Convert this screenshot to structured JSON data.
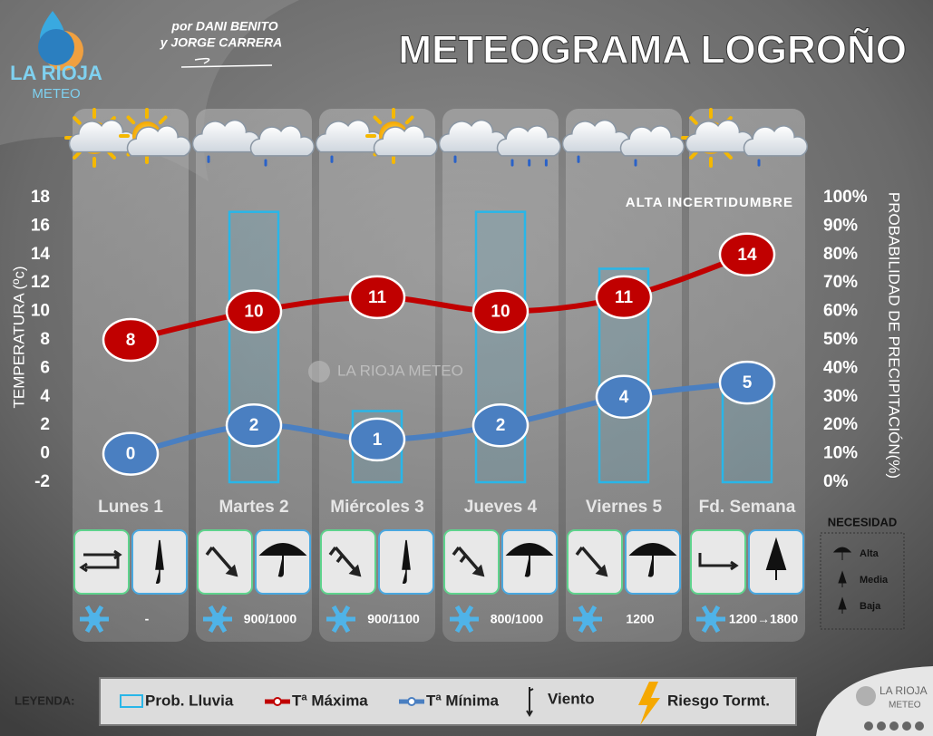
{
  "chart_data": {
    "type": "meteogram",
    "title": "METEOGRAMA LOGROÑO",
    "authors": [
      "por DANI BENITO",
      "y JORGE CARRERA"
    ],
    "logo": {
      "name": "LA RIOJA",
      "sub": "METEO"
    },
    "watermark": "LA RIOJA METEO",
    "annotation": "ALTA INCERTIDUMBRE",
    "y_label": "TEMPERATURA (ºc)",
    "y2_label": "PROBABILIDAD DE PRECIPITACIÓN(%)",
    "categories": [
      "Lunes 1",
      "Martes 2",
      "Miércoles 3",
      "Jueves 4",
      "Viernes 5",
      "Fd. Semana"
    ],
    "ylim": [
      -2,
      18
    ],
    "yticks": [
      -2,
      0,
      2,
      4,
      6,
      8,
      10,
      12,
      14,
      16,
      18
    ],
    "y2lim": [
      0,
      100
    ],
    "y2ticks": [
      {
        "value": 0,
        "label": "0%"
      },
      {
        "value": 10,
        "label": "10%"
      },
      {
        "value": 20,
        "label": "20%"
      },
      {
        "value": 30,
        "label": "30%"
      },
      {
        "value": 40,
        "label": "40%"
      },
      {
        "value": 50,
        "label": "50%"
      },
      {
        "value": 60,
        "label": "60%"
      },
      {
        "value": 70,
        "label": "70%"
      },
      {
        "value": 80,
        "label": "80%"
      },
      {
        "value": 90,
        "label": "90%"
      },
      {
        "value": 100,
        "label": "100%"
      }
    ],
    "series": [
      {
        "name": "Prob. Lluvia",
        "color": "#29b6e8",
        "axis": "y2",
        "values": [
          0,
          95,
          25,
          95,
          75,
          35
        ]
      },
      {
        "name": "Tª Máxima",
        "color": "#c00000",
        "values": [
          8,
          10,
          11,
          10,
          11,
          14
        ]
      },
      {
        "name": "Tª Mínima",
        "color": "#4a7fc1",
        "values": [
          0,
          2,
          1,
          2,
          4,
          5
        ]
      }
    ],
    "snow_level": [
      "-",
      "900/1000",
      "900/1100",
      "800/1000",
      "1200",
      "1200→1800"
    ],
    "necesidad": {
      "title": "NECESIDAD",
      "levels": [
        "Alta",
        "Media",
        "Baja"
      ]
    },
    "legend": {
      "title": "LEYENDA:",
      "wind": "Viento",
      "storm": "Riesgo Tormt."
    }
  }
}
